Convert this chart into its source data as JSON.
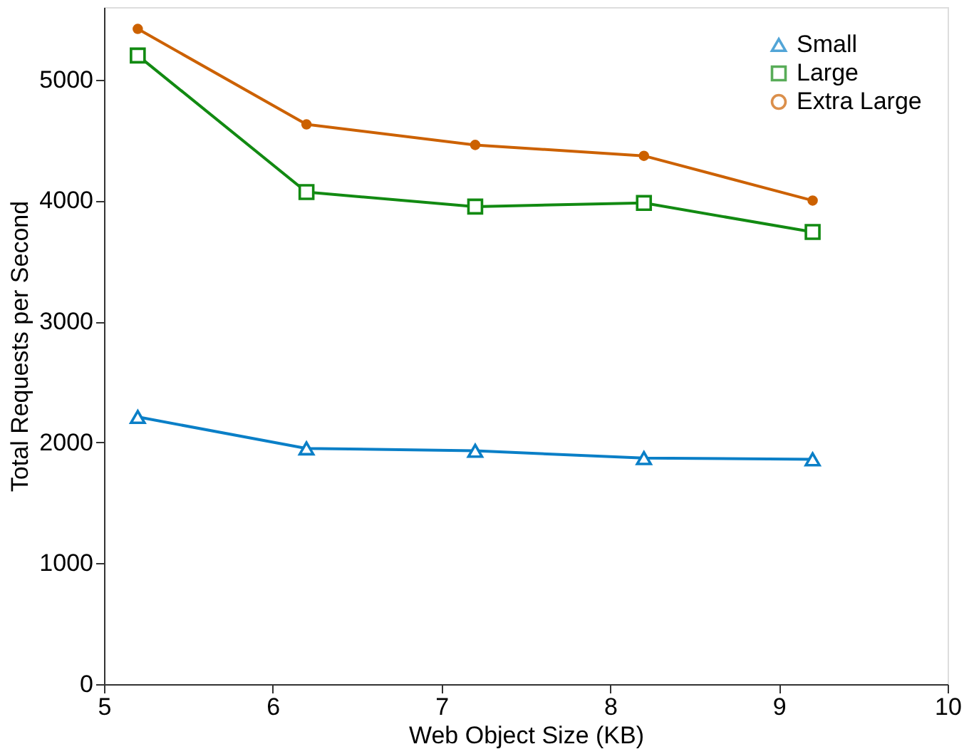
{
  "chart_data": {
    "type": "line",
    "xlabel": "Web Object Size (KB)",
    "ylabel": "Total Requests per Second",
    "x": [
      5.2,
      6.2,
      7.2,
      8.2,
      9.2
    ],
    "series": [
      {
        "name": "Small",
        "color": "#0a7fc7",
        "marker": "triangle",
        "values": [
          2210,
          1950,
          1930,
          1870,
          1860
        ]
      },
      {
        "name": "Large",
        "color": "#128a12",
        "marker": "square",
        "values": [
          5200,
          4070,
          3950,
          3980,
          3740
        ]
      },
      {
        "name": "Extra Large",
        "color": "#cc6100",
        "marker": "circle",
        "values": [
          5420,
          4630,
          4460,
          4370,
          4000
        ]
      }
    ],
    "xlim": [
      5,
      10
    ],
    "xticks": [
      5,
      6,
      7,
      8,
      9,
      10
    ],
    "ylim": [
      0,
      5600
    ],
    "yticks": [
      0,
      1000,
      2000,
      3000,
      4000,
      5000
    ],
    "grid": false,
    "legend": "top right",
    "line_style": "solid"
  }
}
